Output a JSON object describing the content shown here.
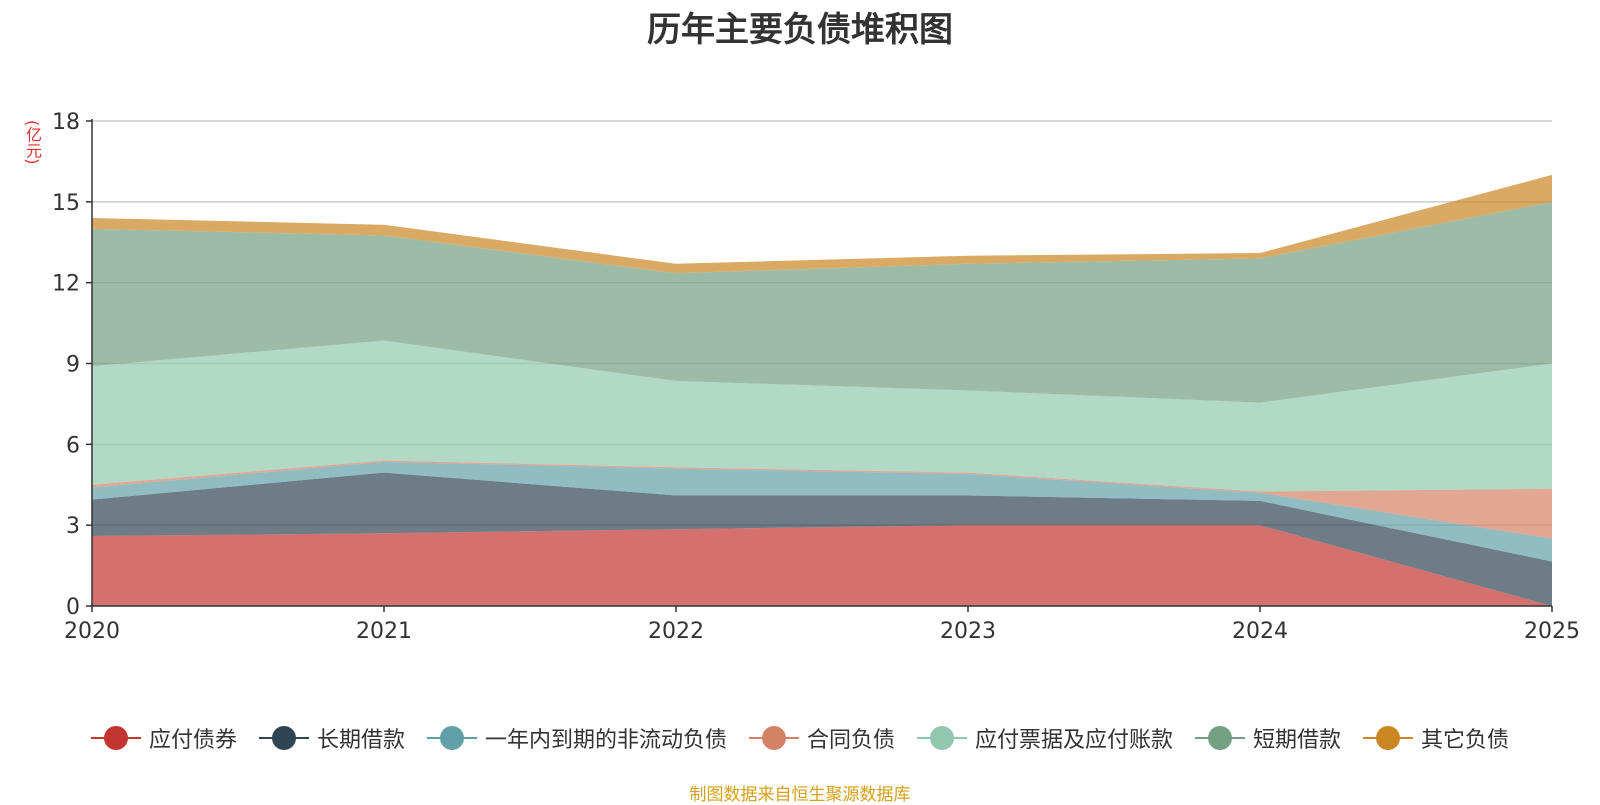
{
  "chart_data": {
    "type": "area",
    "stacked": true,
    "title": "历年主要负债堆积图",
    "unit_label": "(亿元)",
    "x": [
      "2020",
      "2021",
      "2022",
      "2023",
      "2024",
      "2025"
    ],
    "ylim": [
      0,
      18
    ],
    "yticks": [
      0,
      3,
      6,
      9,
      12,
      15,
      18
    ],
    "grid": true,
    "legend_position": "bottom",
    "series": [
      {
        "name": "应付债券",
        "color": "#c23531",
        "values": [
          2.6,
          2.7,
          2.85,
          3.0,
          3.0,
          0.0
        ]
      },
      {
        "name": "长期借款",
        "color": "#2f4554",
        "values": [
          1.35,
          2.25,
          1.25,
          1.1,
          0.9,
          1.65
        ]
      },
      {
        "name": "一年内到期的非流动负债",
        "color": "#61a0a8",
        "values": [
          0.45,
          0.4,
          1.0,
          0.8,
          0.3,
          0.85
        ]
      },
      {
        "name": "合同负债",
        "color": "#d48265",
        "values": [
          0.1,
          0.05,
          0.05,
          0.05,
          0.05,
          1.85
        ]
      },
      {
        "name": "应付票据及应付账款",
        "color": "#91c7ae",
        "values": [
          4.4,
          4.45,
          3.2,
          3.05,
          3.3,
          4.65
        ]
      },
      {
        "name": "短期借款",
        "color": "#749f83",
        "values": [
          5.1,
          3.9,
          4.0,
          4.7,
          5.35,
          6.0
        ]
      },
      {
        "name": "其它负债",
        "color": "#ca8622",
        "values": [
          0.4,
          0.4,
          0.35,
          0.3,
          0.2,
          1.0
        ]
      }
    ],
    "source": "制图数据来自恒生聚源数据库"
  }
}
